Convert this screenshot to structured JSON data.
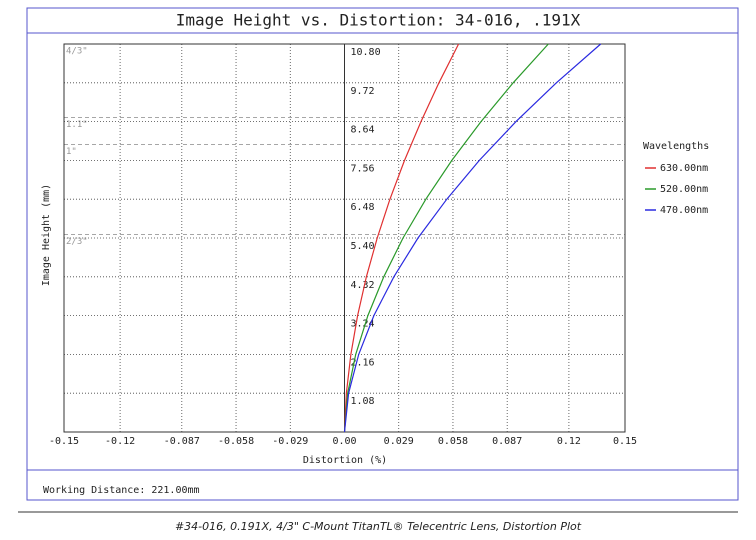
{
  "chart_data": {
    "type": "line",
    "title": "Image Height vs. Distortion: 34-016, .191X",
    "x_label": "Distortion (%)",
    "y_label": "Image Height (mm)",
    "legend_title": "Wavelengths",
    "footer": "Working Distance: 221.00mm",
    "caption": "#34-016, 0.191X, 4/3\" C-Mount TitanTL® Telecentric Lens, Distortion Plot",
    "xlim": [
      -0.15,
      0.15
    ],
    "ylim": [
      0,
      10.8
    ],
    "xticks": [
      -0.15,
      -0.12,
      -0.087,
      -0.058,
      -0.029,
      {
        "value": 0,
        "label": "0.00"
      },
      0.029,
      0.058,
      0.087,
      0.12,
      0.15
    ],
    "yticks": [
      1.08,
      2.16,
      3.24,
      4.32,
      {
        "value": 5.4,
        "label": "5.40"
      },
      6.48,
      7.56,
      8.64,
      9.72,
      {
        "value": 10.8,
        "label": "10.80"
      }
    ],
    "grid": true,
    "format_lines": [
      {
        "label": "4/3\"",
        "value": 10.8
      },
      {
        "label": "1.1\"",
        "value": 8.75
      },
      {
        "label": "1\"",
        "value": 8
      },
      {
        "label": "2/3\"",
        "value": 5.5
      }
    ],
    "series": [
      {
        "name": "630.00nm",
        "color": "#e03030",
        "x": [
          0,
          0.001,
          0.0034,
          0.007,
          0.0117,
          0.0175,
          0.0243,
          0.0321,
          0.0409,
          0.0505,
          0.061
        ],
        "values": [
          0,
          1.08,
          2.16,
          3.24,
          4.32,
          5.4,
          6.48,
          7.56,
          8.64,
          9.72,
          10.8
        ]
      },
      {
        "name": "520.00nm",
        "color": "#2a9a2a",
        "x": [
          0,
          0.0017,
          0.006,
          0.0125,
          0.021,
          0.0313,
          0.0435,
          0.0574,
          0.073,
          0.0902,
          0.109
        ],
        "values": [
          0,
          1.08,
          2.16,
          3.24,
          4.32,
          5.4,
          6.48,
          7.56,
          8.64,
          9.72,
          10.8
        ]
      },
      {
        "name": "470.00nm",
        "color": "#2a2ae0",
        "x": [
          0,
          0.0022,
          0.0076,
          0.0157,
          0.0264,
          0.0393,
          0.0547,
          0.0721,
          0.0917,
          0.1133,
          0.137
        ],
        "values": [
          0,
          1.08,
          2.16,
          3.24,
          4.32,
          5.4,
          6.48,
          7.56,
          8.64,
          9.72,
          10.8
        ]
      }
    ]
  }
}
